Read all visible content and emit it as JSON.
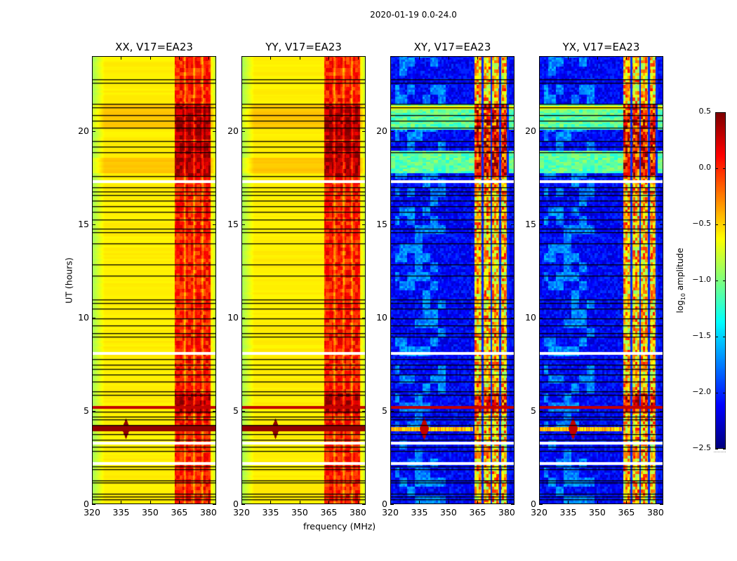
{
  "chart_data": {
    "type": "heatmap",
    "title": "2020-01-19 0.0-24.0",
    "xlabel": "frequency (MHz)",
    "ylabel": "UT (hours)",
    "xlim": [
      320,
      384
    ],
    "ylim": [
      0,
      24
    ],
    "xticks": [
      "320",
      "335",
      "350",
      "365",
      "380"
    ],
    "xtick_values": [
      320,
      335,
      350,
      365,
      380
    ],
    "yticks": [
      "0",
      "5",
      "10",
      "15",
      "20"
    ],
    "ytick_values": [
      0,
      5,
      10,
      15,
      20
    ],
    "panels": [
      {
        "title": "XX, V17=EA23",
        "kind": "parallel"
      },
      {
        "title": "YY, V17=EA23",
        "kind": "parallel"
      },
      {
        "title": "XY, V17=EA23",
        "kind": "cross"
      },
      {
        "title": "YX, V17=EA23",
        "kind": "cross"
      }
    ],
    "flagged_hours": [
      0.3,
      0.45,
      0.6,
      1.2,
      1.3,
      1.9,
      2.05,
      2.9,
      3.1,
      3.5,
      3.8,
      4.3,
      4.6,
      4.75,
      5.0,
      5.9,
      6.1,
      6.6,
      7.0,
      7.3,
      7.5,
      7.8,
      9.0,
      9.2,
      9.6,
      10.0,
      10.5,
      10.8,
      11.0,
      12.3,
      12.9,
      14.0,
      14.6,
      14.8,
      15.3,
      15.7,
      16.0,
      16.3,
      16.6,
      16.8,
      17.0,
      17.6,
      18.9,
      19.2,
      19.5,
      20.2,
      20.6,
      20.9,
      21.3,
      21.5,
      22.6,
      22.8
    ],
    "gap_hours": [
      2.2,
      3.3,
      8.1,
      17.3
    ],
    "colorbar": {
      "label": "log10 amplitude",
      "colormap": "jet",
      "range": [
        -2.5,
        0.5
      ],
      "ticks": [
        "0.5",
        "0.0",
        "−0.5",
        "−1.0",
        "−1.5",
        "−2.0",
        "−2.5"
      ],
      "tick_values": [
        0.5,
        0.0,
        -0.5,
        -1.0,
        -1.5,
        -2.0,
        -2.5
      ]
    }
  }
}
